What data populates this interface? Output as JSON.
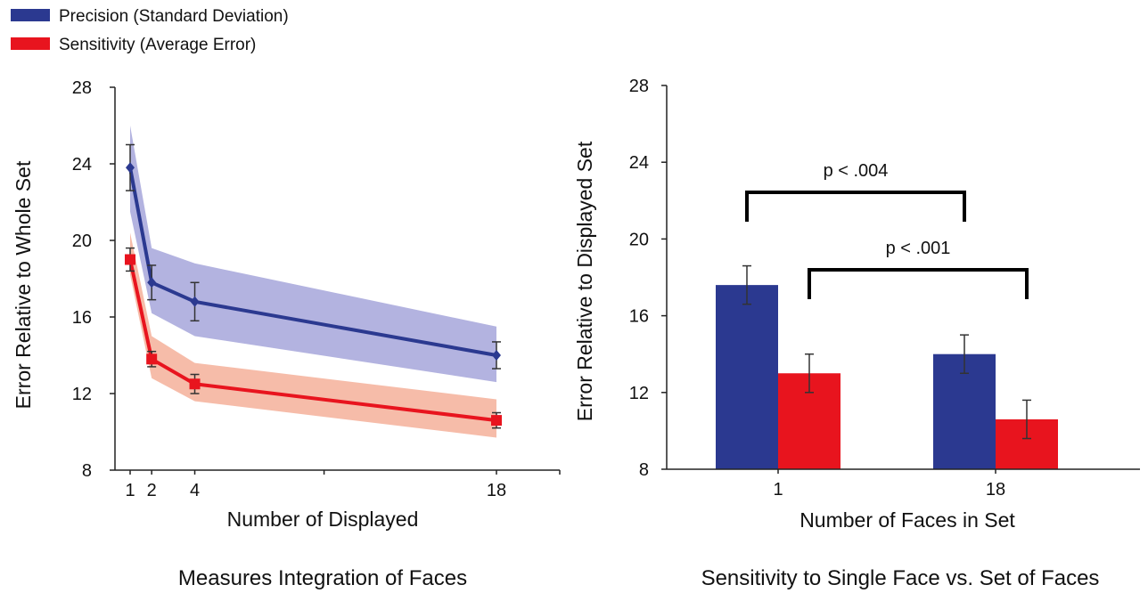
{
  "legend": {
    "entries": [
      {
        "label": "Precision (Standard Deviation)",
        "color": "#2b3990"
      },
      {
        "label": "Sensitivity (Average Error)",
        "color": "#e8141e"
      }
    ]
  },
  "chart_data": [
    {
      "type": "line",
      "caption": "Measures Integration of Faces",
      "xlabel": "Number of Displayed",
      "ylabel": "Error Relative to Whole Set",
      "xlim": [
        0.5,
        24
      ],
      "ylim": [
        8,
        28
      ],
      "x_ticks": [
        1,
        2,
        4,
        18
      ],
      "y_ticks": [
        8,
        12,
        16,
        20,
        24,
        28
      ],
      "series": [
        {
          "name": "Precision (Standard Deviation)",
          "color": "#2b3990",
          "band_color": "#9a9ad6",
          "marker": "diamond",
          "x": [
            1,
            2,
            4,
            18
          ],
          "y": [
            23.8,
            17.8,
            16.8,
            14.0
          ],
          "err": [
            1.2,
            0.9,
            1.0,
            0.7
          ],
          "band_low": [
            21.5,
            16.2,
            15.0,
            12.6
          ],
          "band_high": [
            26.0,
            19.6,
            18.8,
            15.5
          ]
        },
        {
          "name": "Sensitivity (Average Error)",
          "color": "#e8141e",
          "band_color": "#f3a68c",
          "marker": "square",
          "x": [
            1,
            2,
            4,
            18
          ],
          "y": [
            19.0,
            13.8,
            12.5,
            10.6
          ],
          "err": [
            0.6,
            0.4,
            0.5,
            0.4
          ],
          "band_low": [
            18.2,
            12.8,
            11.6,
            9.7
          ],
          "band_high": [
            20.4,
            15.0,
            13.6,
            11.7
          ]
        }
      ]
    },
    {
      "type": "bar",
      "caption": "Sensitivity to Single Face vs. Set of Faces",
      "xlabel": "Number of Faces in Set",
      "ylabel": "Error Relative to Displayed Set",
      "categories": [
        "1",
        "18"
      ],
      "ylim": [
        8,
        28
      ],
      "y_ticks": [
        8,
        12,
        16,
        20,
        24,
        28
      ],
      "series": [
        {
          "name": "Precision (Standard Deviation)",
          "color": "#2b3990",
          "values": [
            17.6,
            14.0
          ],
          "err": [
            1.0,
            1.0
          ]
        },
        {
          "name": "Sensitivity (Average Error)",
          "color": "#e8141e",
          "values": [
            13.0,
            10.6
          ],
          "err": [
            1.0,
            1.0
          ]
        }
      ],
      "annotations": [
        {
          "text": "p < .004",
          "from": "1:Precision (Standard Deviation)",
          "to": "18:Precision (Standard Deviation)"
        },
        {
          "text": "p < .001",
          "from": "1:Sensitivity (Average Error)",
          "to": "18:Sensitivity (Average Error)"
        }
      ]
    }
  ]
}
